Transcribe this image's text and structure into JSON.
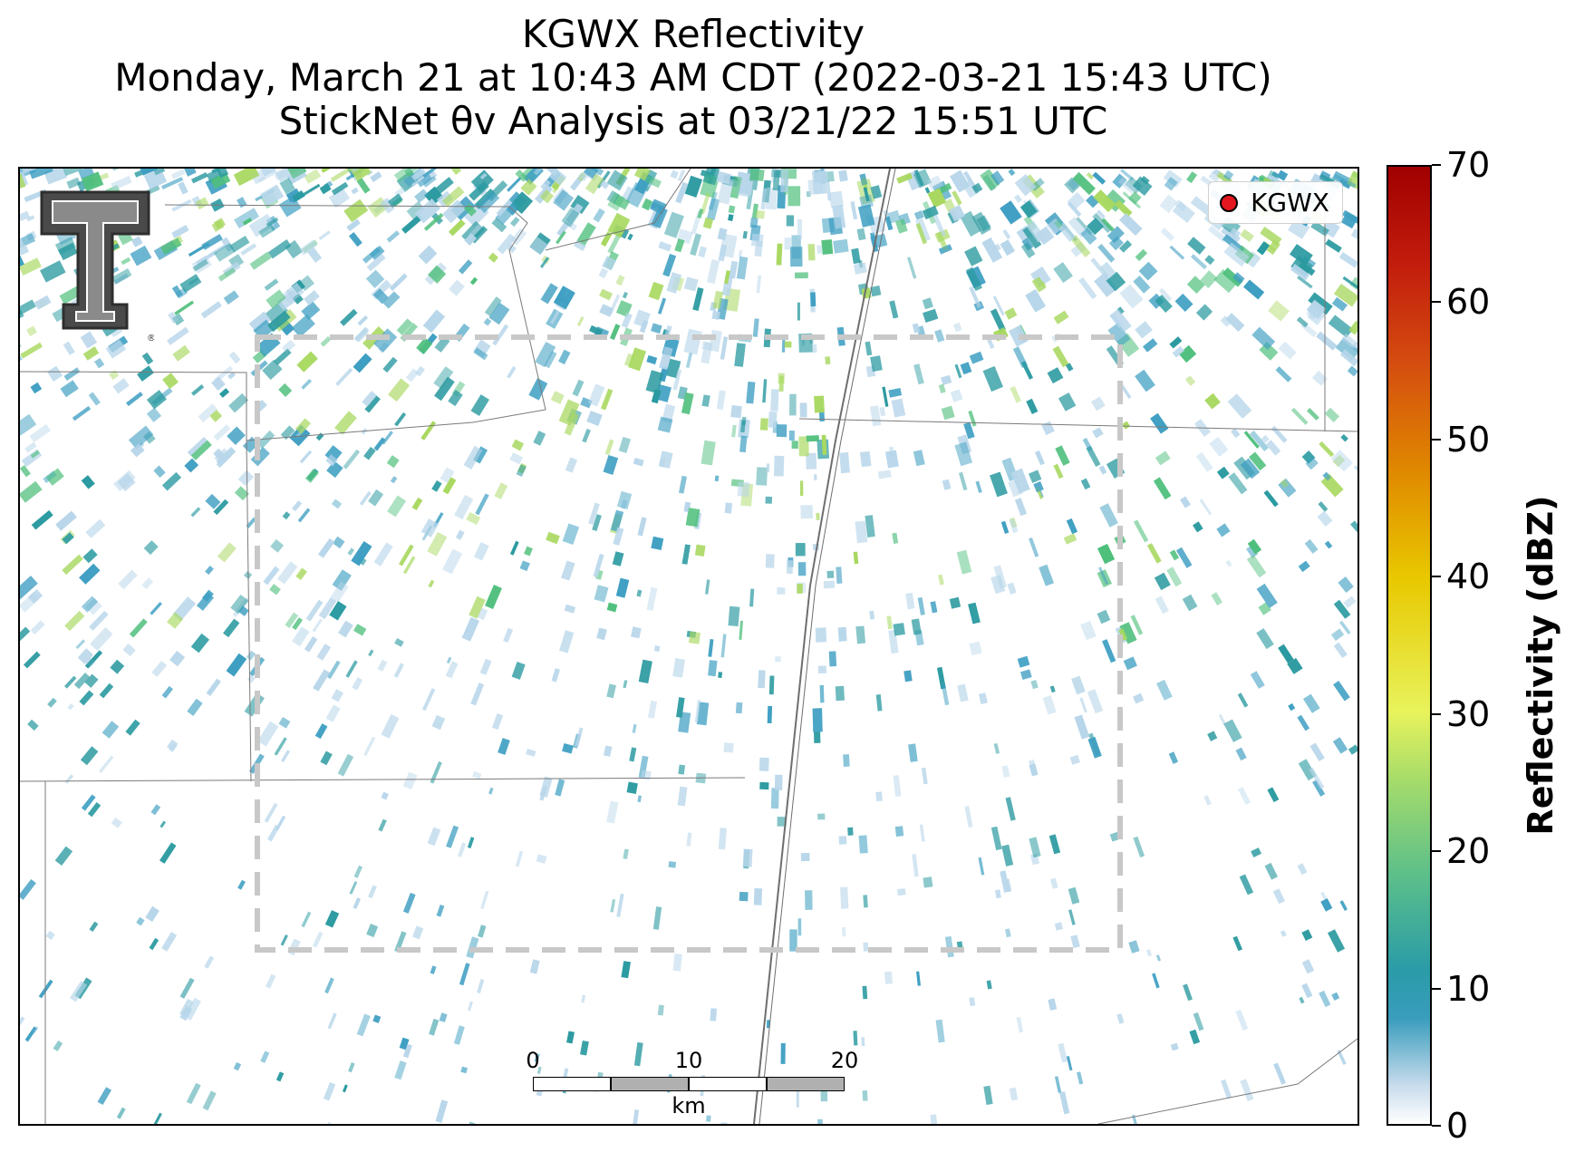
{
  "title": {
    "line1": "KGWX Reflectivity",
    "line2": "Monday, March 21 at 10:43 AM CDT (2022-03-21 15:43 UTC)",
    "line3": "StickNet θv Analysis at 03/21/22 15:51 UTC"
  },
  "legend": {
    "label": "KGWX",
    "marker_color": "#e3171f"
  },
  "colorbar": {
    "label": "Reflectivity (dBZ)",
    "ticks": [
      "0",
      "10",
      "20",
      "30",
      "40",
      "50",
      "60",
      "70"
    ],
    "min": 0,
    "max": 70
  },
  "scalebar": {
    "ticks": [
      "0",
      "10",
      "20"
    ],
    "unit": "km"
  },
  "logo": {
    "name": "texas-tech-double-t-logo",
    "mark": "®"
  },
  "colors": {
    "light": "#b8d6ea",
    "mid": "#3f9fc2",
    "teal": "#2a9aa0",
    "green": "#4fbf7c",
    "yellowgreen": "#a8d860",
    "analysis_box": "#c8c8c8"
  }
}
